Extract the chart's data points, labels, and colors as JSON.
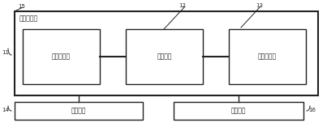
{
  "bg_color": "#ffffff",
  "line_color": "#222222",
  "box_fill": "#ffffff",
  "title_outer": "系统驱动层",
  "label_sensor": "磁场传感器",
  "label_controller": "微控制器",
  "label_transmitter": "射频收发器",
  "label_fix": "固定装置",
  "label_power": "供电单元",
  "ref_11": "11",
  "ref_12": "12",
  "ref_13": "13",
  "ref_14": "14",
  "ref_15": "15",
  "ref_16": "16",
  "font_size_label": 5.5,
  "font_size_ref": 5.0,
  "lw_outer": 1.5,
  "lw_inner": 1.0,
  "lw_conn": 1.5,
  "lw_ref": 0.7
}
